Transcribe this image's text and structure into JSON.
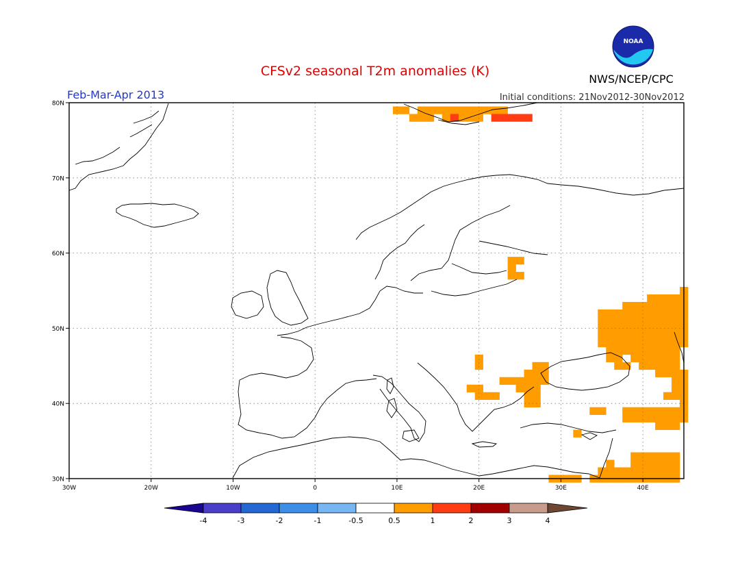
{
  "header": {
    "title": "CFSv2 seasonal T2m anomalies (K)",
    "season": "Feb-Mar-Apr 2013",
    "initial_conditions": "Initial conditions: 21Nov2012-30Nov2012",
    "agency": "NWS/NCEP/CPC",
    "logo_text": "NOAA"
  },
  "map": {
    "projection": "lat-lon",
    "lon_range": [
      -30,
      45
    ],
    "lat_range": [
      30,
      80
    ],
    "lon_ticks": [
      "30W",
      "20W",
      "10W",
      "0",
      "10E",
      "20E",
      "30E",
      "40E"
    ],
    "lat_ticks": [
      "80N",
      "70N",
      "60N",
      "50N",
      "40N",
      "30N"
    ],
    "grid": "dotted, every 10 degrees"
  },
  "colorbar": {
    "labels": [
      "-4",
      "-3",
      "-2",
      "-1",
      "-0.5",
      "0.5",
      "1",
      "2",
      "3",
      "4"
    ],
    "colors": [
      "#1a0590",
      "#4a3ec8",
      "#2468d4",
      "#3c8ee8",
      "#76b6f2",
      "#ffffff",
      "#ff9c00",
      "#ff3c14",
      "#a00000",
      "#c89c8c",
      "#6e4632"
    ]
  },
  "anomaly_cells": {
    "class_colors": {
      "0.5-1": "#ff9c00",
      "1-2": "#ff3c14"
    },
    "cells_0.5_to_1_lon_lat": [
      [
        10,
        79
      ],
      [
        11,
        79
      ],
      [
        13,
        79
      ],
      [
        14,
        79
      ],
      [
        15,
        79
      ],
      [
        16,
        79
      ],
      [
        17,
        79
      ],
      [
        18,
        79
      ],
      [
        19,
        79
      ],
      [
        20,
        79
      ],
      [
        21,
        79
      ],
      [
        22,
        79
      ],
      [
        23,
        79
      ],
      [
        12,
        78
      ],
      [
        13,
        78
      ],
      [
        14,
        78
      ],
      [
        16,
        78
      ],
      [
        18,
        78
      ],
      [
        19,
        78
      ],
      [
        20,
        78
      ],
      [
        24,
        59
      ],
      [
        25,
        59
      ],
      [
        24,
        58
      ],
      [
        24,
        57
      ],
      [
        25,
        57
      ],
      [
        45,
        55
      ],
      [
        41,
        54
      ],
      [
        42,
        54
      ],
      [
        43,
        54
      ],
      [
        44,
        54
      ],
      [
        45,
        54
      ],
      [
        38,
        53
      ],
      [
        39,
        53
      ],
      [
        40,
        53
      ],
      [
        41,
        53
      ],
      [
        42,
        53
      ],
      [
        43,
        53
      ],
      [
        44,
        53
      ],
      [
        45,
        53
      ],
      [
        35,
        52
      ],
      [
        36,
        52
      ],
      [
        37,
        52
      ],
      [
        38,
        52
      ],
      [
        39,
        52
      ],
      [
        40,
        52
      ],
      [
        41,
        52
      ],
      [
        42,
        52
      ],
      [
        43,
        52
      ],
      [
        44,
        52
      ],
      [
        45,
        52
      ],
      [
        35,
        51
      ],
      [
        36,
        51
      ],
      [
        37,
        51
      ],
      [
        38,
        51
      ],
      [
        39,
        51
      ],
      [
        40,
        51
      ],
      [
        41,
        51
      ],
      [
        42,
        51
      ],
      [
        43,
        51
      ],
      [
        44,
        51
      ],
      [
        45,
        51
      ],
      [
        35,
        50
      ],
      [
        36,
        50
      ],
      [
        37,
        50
      ],
      [
        38,
        50
      ],
      [
        39,
        50
      ],
      [
        40,
        50
      ],
      [
        41,
        50
      ],
      [
        42,
        50
      ],
      [
        43,
        50
      ],
      [
        44,
        50
      ],
      [
        45,
        50
      ],
      [
        35,
        49
      ],
      [
        36,
        49
      ],
      [
        37,
        49
      ],
      [
        38,
        49
      ],
      [
        39,
        49
      ],
      [
        40,
        49
      ],
      [
        41,
        49
      ],
      [
        42,
        49
      ],
      [
        43,
        49
      ],
      [
        44,
        49
      ],
      [
        45,
        49
      ],
      [
        35,
        48
      ],
      [
        36,
        48
      ],
      [
        37,
        48
      ],
      [
        38,
        48
      ],
      [
        39,
        48
      ],
      [
        40,
        48
      ],
      [
        41,
        48
      ],
      [
        42,
        48
      ],
      [
        43,
        48
      ],
      [
        44,
        48
      ],
      [
        45,
        48
      ],
      [
        36,
        47
      ],
      [
        37,
        47
      ],
      [
        38,
        47
      ],
      [
        39,
        47
      ],
      [
        40,
        47
      ],
      [
        41,
        47
      ],
      [
        42,
        47
      ],
      [
        43,
        47
      ],
      [
        44,
        47
      ],
      [
        20,
        46
      ],
      [
        36,
        46
      ],
      [
        37,
        46
      ],
      [
        39,
        46
      ],
      [
        40,
        46
      ],
      [
        41,
        46
      ],
      [
        42,
        46
      ],
      [
        43,
        46
      ],
      [
        44,
        46
      ],
      [
        27,
        45
      ],
      [
        28,
        45
      ],
      [
        20,
        45
      ],
      [
        37,
        45
      ],
      [
        38,
        45
      ],
      [
        40,
        45
      ],
      [
        41,
        45
      ],
      [
        42,
        45
      ],
      [
        43,
        45
      ],
      [
        44,
        45
      ],
      [
        26,
        44
      ],
      [
        27,
        44
      ],
      [
        28,
        44
      ],
      [
        42,
        44
      ],
      [
        43,
        44
      ],
      [
        44,
        44
      ],
      [
        45,
        44
      ],
      [
        23,
        43
      ],
      [
        24,
        43
      ],
      [
        25,
        43
      ],
      [
        26,
        43
      ],
      [
        27,
        43
      ],
      [
        28,
        43
      ],
      [
        44,
        43
      ],
      [
        45,
        43
      ],
      [
        19,
        42
      ],
      [
        20,
        42
      ],
      [
        25,
        42
      ],
      [
        26,
        42
      ],
      [
        27,
        42
      ],
      [
        44,
        42
      ],
      [
        45,
        42
      ],
      [
        20,
        41
      ],
      [
        21,
        41
      ],
      [
        22,
        41
      ],
      [
        26,
        41
      ],
      [
        27,
        41
      ],
      [
        43,
        41
      ],
      [
        44,
        41
      ],
      [
        45,
        41
      ],
      [
        26,
        40
      ],
      [
        27,
        40
      ],
      [
        45,
        40
      ],
      [
        34,
        39
      ],
      [
        35,
        39
      ],
      [
        38,
        39
      ],
      [
        39,
        39
      ],
      [
        40,
        39
      ],
      [
        41,
        39
      ],
      [
        42,
        39
      ],
      [
        43,
        39
      ],
      [
        44,
        39
      ],
      [
        45,
        39
      ],
      [
        38,
        38
      ],
      [
        39,
        38
      ],
      [
        40,
        38
      ],
      [
        41,
        38
      ],
      [
        42,
        38
      ],
      [
        43,
        38
      ],
      [
        44,
        38
      ],
      [
        45,
        38
      ],
      [
        42,
        37
      ],
      [
        43,
        37
      ],
      [
        44,
        37
      ],
      [
        32,
        36
      ],
      [
        39,
        33
      ],
      [
        40,
        33
      ],
      [
        41,
        33
      ],
      [
        42,
        33
      ],
      [
        43,
        33
      ],
      [
        44,
        33
      ],
      [
        36,
        32
      ],
      [
        39,
        32
      ],
      [
        40,
        32
      ],
      [
        41,
        32
      ],
      [
        42,
        32
      ],
      [
        43,
        32
      ],
      [
        44,
        32
      ],
      [
        35,
        31
      ],
      [
        36,
        31
      ],
      [
        37,
        31
      ],
      [
        38,
        31
      ],
      [
        39,
        31
      ],
      [
        40,
        31
      ],
      [
        41,
        31
      ],
      [
        42,
        31
      ],
      [
        43,
        31
      ],
      [
        44,
        31
      ],
      [
        29,
        30
      ],
      [
        30,
        30
      ],
      [
        31,
        30
      ],
      [
        32,
        30
      ],
      [
        34,
        30
      ],
      [
        35,
        30
      ],
      [
        36,
        30
      ],
      [
        37,
        30
      ],
      [
        38,
        30
      ],
      [
        39,
        30
      ],
      [
        40,
        30
      ],
      [
        41,
        30
      ],
      [
        42,
        30
      ],
      [
        43,
        30
      ],
      [
        44,
        30
      ]
    ],
    "cells_1_to_2_lon_lat": [
      [
        17,
        78
      ],
      [
        22,
        78
      ],
      [
        23,
        78
      ],
      [
        24,
        78
      ],
      [
        25,
        78
      ],
      [
        26,
        78
      ]
    ]
  }
}
